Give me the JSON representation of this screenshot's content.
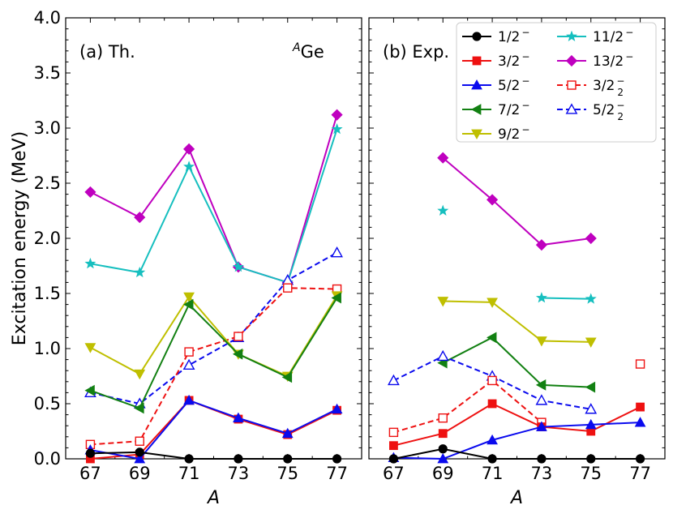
{
  "chart_data": {
    "type": "line",
    "ylabel": "Excitation energy (MeV)",
    "ylim": [
      0,
      4.0
    ],
    "yticks": [
      0.0,
      0.5,
      1.0,
      1.5,
      2.0,
      2.5,
      3.0,
      3.5,
      4.0
    ],
    "ytick_labels": [
      "0.0",
      "0.5",
      "1.0",
      "1.5",
      "2.0",
      "2.5",
      "3.0",
      "3.5",
      "4.0"
    ],
    "xlim": [
      66,
      78
    ],
    "legend_position": "top-right of panel b",
    "colors": {
      "black": "#000000",
      "red": "#ee1111",
      "blue": "#0a0aee",
      "green": "#128012",
      "olive": "#bfbf00",
      "cyan": "#16bfbf",
      "magenta": "#bf00bf"
    },
    "legend": [
      {
        "id": "half",
        "main": "1/2",
        "sup": "−",
        "sub": "",
        "color": "black",
        "marker": "circle",
        "filled": true,
        "dashed": false
      },
      {
        "id": "three",
        "main": "3/2",
        "sup": "−",
        "sub": "",
        "color": "red",
        "marker": "square",
        "filled": true,
        "dashed": false
      },
      {
        "id": "five",
        "main": "5/2",
        "sup": "−",
        "sub": "",
        "color": "blue",
        "marker": "triangle-up",
        "filled": true,
        "dashed": false
      },
      {
        "id": "seven",
        "main": "7/2",
        "sup": "−",
        "sub": "",
        "color": "green",
        "marker": "triangle-left",
        "filled": true,
        "dashed": false
      },
      {
        "id": "nine",
        "main": "9/2",
        "sup": "−",
        "sub": "",
        "color": "olive",
        "marker": "triangle-down",
        "filled": true,
        "dashed": false
      },
      {
        "id": "eleven",
        "main": "11/2",
        "sup": "−",
        "sub": "",
        "color": "cyan",
        "marker": "star",
        "filled": true,
        "dashed": false
      },
      {
        "id": "thirteen",
        "main": "13/2",
        "sup": "−",
        "sub": "",
        "color": "magenta",
        "marker": "diamond",
        "filled": true,
        "dashed": false
      },
      {
        "id": "three2",
        "main": "3/2",
        "sup": "−",
        "sub": "2",
        "color": "red",
        "marker": "square",
        "filled": false,
        "dashed": true
      },
      {
        "id": "five2",
        "main": "5/2",
        "sup": "−",
        "sub": "2",
        "color": "blue",
        "marker": "triangle-up",
        "filled": false,
        "dashed": true
      }
    ],
    "panels": [
      {
        "id": "a",
        "label": "(a) Th.",
        "nucleus_sup": "A",
        "nucleus": "Ge",
        "xlabel": "A",
        "xticks": [
          67,
          69,
          71,
          73,
          75,
          77
        ],
        "xtick_labels": [
          "67",
          "69",
          "71",
          "73",
          "75",
          "77"
        ],
        "series": [
          {
            "legend_id": "thirteen",
            "x": [
              67,
              69,
              71,
              73,
              75,
              77
            ],
            "y": [
              2.42,
              2.19,
              2.81,
              1.74,
              1.6,
              3.12
            ]
          },
          {
            "legend_id": "eleven",
            "x": [
              67,
              69,
              71,
              73,
              75,
              77
            ],
            "y": [
              1.77,
              1.69,
              2.65,
              1.74,
              1.6,
              2.99
            ]
          },
          {
            "legend_id": "five2",
            "x": [
              67,
              69,
              71,
              73,
              75,
              77
            ],
            "y": [
              0.6,
              0.5,
              0.85,
              1.1,
              1.62,
              1.87
            ]
          },
          {
            "legend_id": "three2",
            "x": [
              67,
              69,
              71,
              73,
              75,
              77
            ],
            "y": [
              0.13,
              0.16,
              0.97,
              1.11,
              1.55,
              1.54
            ]
          },
          {
            "legend_id": "nine",
            "x": [
              67,
              69,
              71,
              73,
              75,
              77
            ],
            "y": [
              1.01,
              0.77,
              1.47,
              0.95,
              0.75,
              1.48
            ]
          },
          {
            "legend_id": "seven",
            "x": [
              67,
              69,
              71,
              73,
              75,
              77
            ],
            "y": [
              0.62,
              0.46,
              1.4,
              0.95,
              0.74,
              1.46
            ]
          },
          {
            "legend_id": "three",
            "x": [
              67,
              69,
              71,
              73,
              75,
              77
            ],
            "y": [
              0.0,
              0.04,
              0.53,
              0.36,
              0.22,
              0.44
            ]
          },
          {
            "legend_id": "five",
            "x": [
              67,
              69,
              71,
              73,
              75,
              77
            ],
            "y": [
              0.08,
              0.0,
              0.53,
              0.37,
              0.23,
              0.45
            ]
          },
          {
            "legend_id": "half",
            "x": [
              67,
              69,
              71,
              73,
              75,
              77
            ],
            "y": [
              0.05,
              0.06,
              0.0,
              0.0,
              0.0,
              0.0
            ]
          }
        ]
      },
      {
        "id": "b",
        "label": "(b) Exp.",
        "xlabel": "A",
        "xticks": [
          67,
          69,
          71,
          73,
          75,
          77
        ],
        "xtick_labels": [
          "67",
          "69",
          "71",
          "73",
          "75",
          "77"
        ],
        "series": [
          {
            "legend_id": "thirteen",
            "x": [
              69,
              71,
              73,
              75
            ],
            "y": [
              2.73,
              2.35,
              1.94,
              2.0
            ]
          },
          {
            "legend_id": "eleven",
            "x": [
              69
            ],
            "y": [
              2.25
            ]
          },
          {
            "legend_id": "eleven",
            "x": [
              73,
              75
            ],
            "y": [
              1.46,
              1.45
            ]
          },
          {
            "legend_id": "nine",
            "x": [
              69,
              71,
              73,
              75
            ],
            "y": [
              1.43,
              1.42,
              1.07,
              1.06
            ]
          },
          {
            "legend_id": "seven",
            "x": [
              69,
              71,
              73,
              75
            ],
            "y": [
              0.87,
              1.1,
              0.67,
              0.65
            ]
          },
          {
            "legend_id": "five2",
            "x": [
              67,
              69,
              71,
              73,
              75
            ],
            "y": [
              0.71,
              0.93,
              0.75,
              0.53,
              0.45
            ]
          },
          {
            "legend_id": "three2",
            "x": [
              67,
              69,
              71,
              73
            ],
            "y": [
              0.24,
              0.37,
              0.71,
              0.33
            ]
          },
          {
            "legend_id": "three2",
            "x": [
              77
            ],
            "y": [
              0.86
            ]
          },
          {
            "legend_id": "three",
            "x": [
              67,
              69,
              71,
              73,
              75,
              77
            ],
            "y": [
              0.12,
              0.23,
              0.5,
              0.29,
              0.25,
              0.47
            ]
          },
          {
            "legend_id": "five",
            "x": [
              67,
              69,
              71,
              73,
              75,
              77
            ],
            "y": [
              0.01,
              0.0,
              0.17,
              0.29,
              0.31,
              0.33
            ]
          },
          {
            "legend_id": "half",
            "x": [
              67,
              69,
              71,
              73,
              75,
              77
            ],
            "y": [
              0.0,
              0.09,
              0.0,
              0.0,
              0.0,
              0.0
            ]
          }
        ]
      }
    ]
  }
}
